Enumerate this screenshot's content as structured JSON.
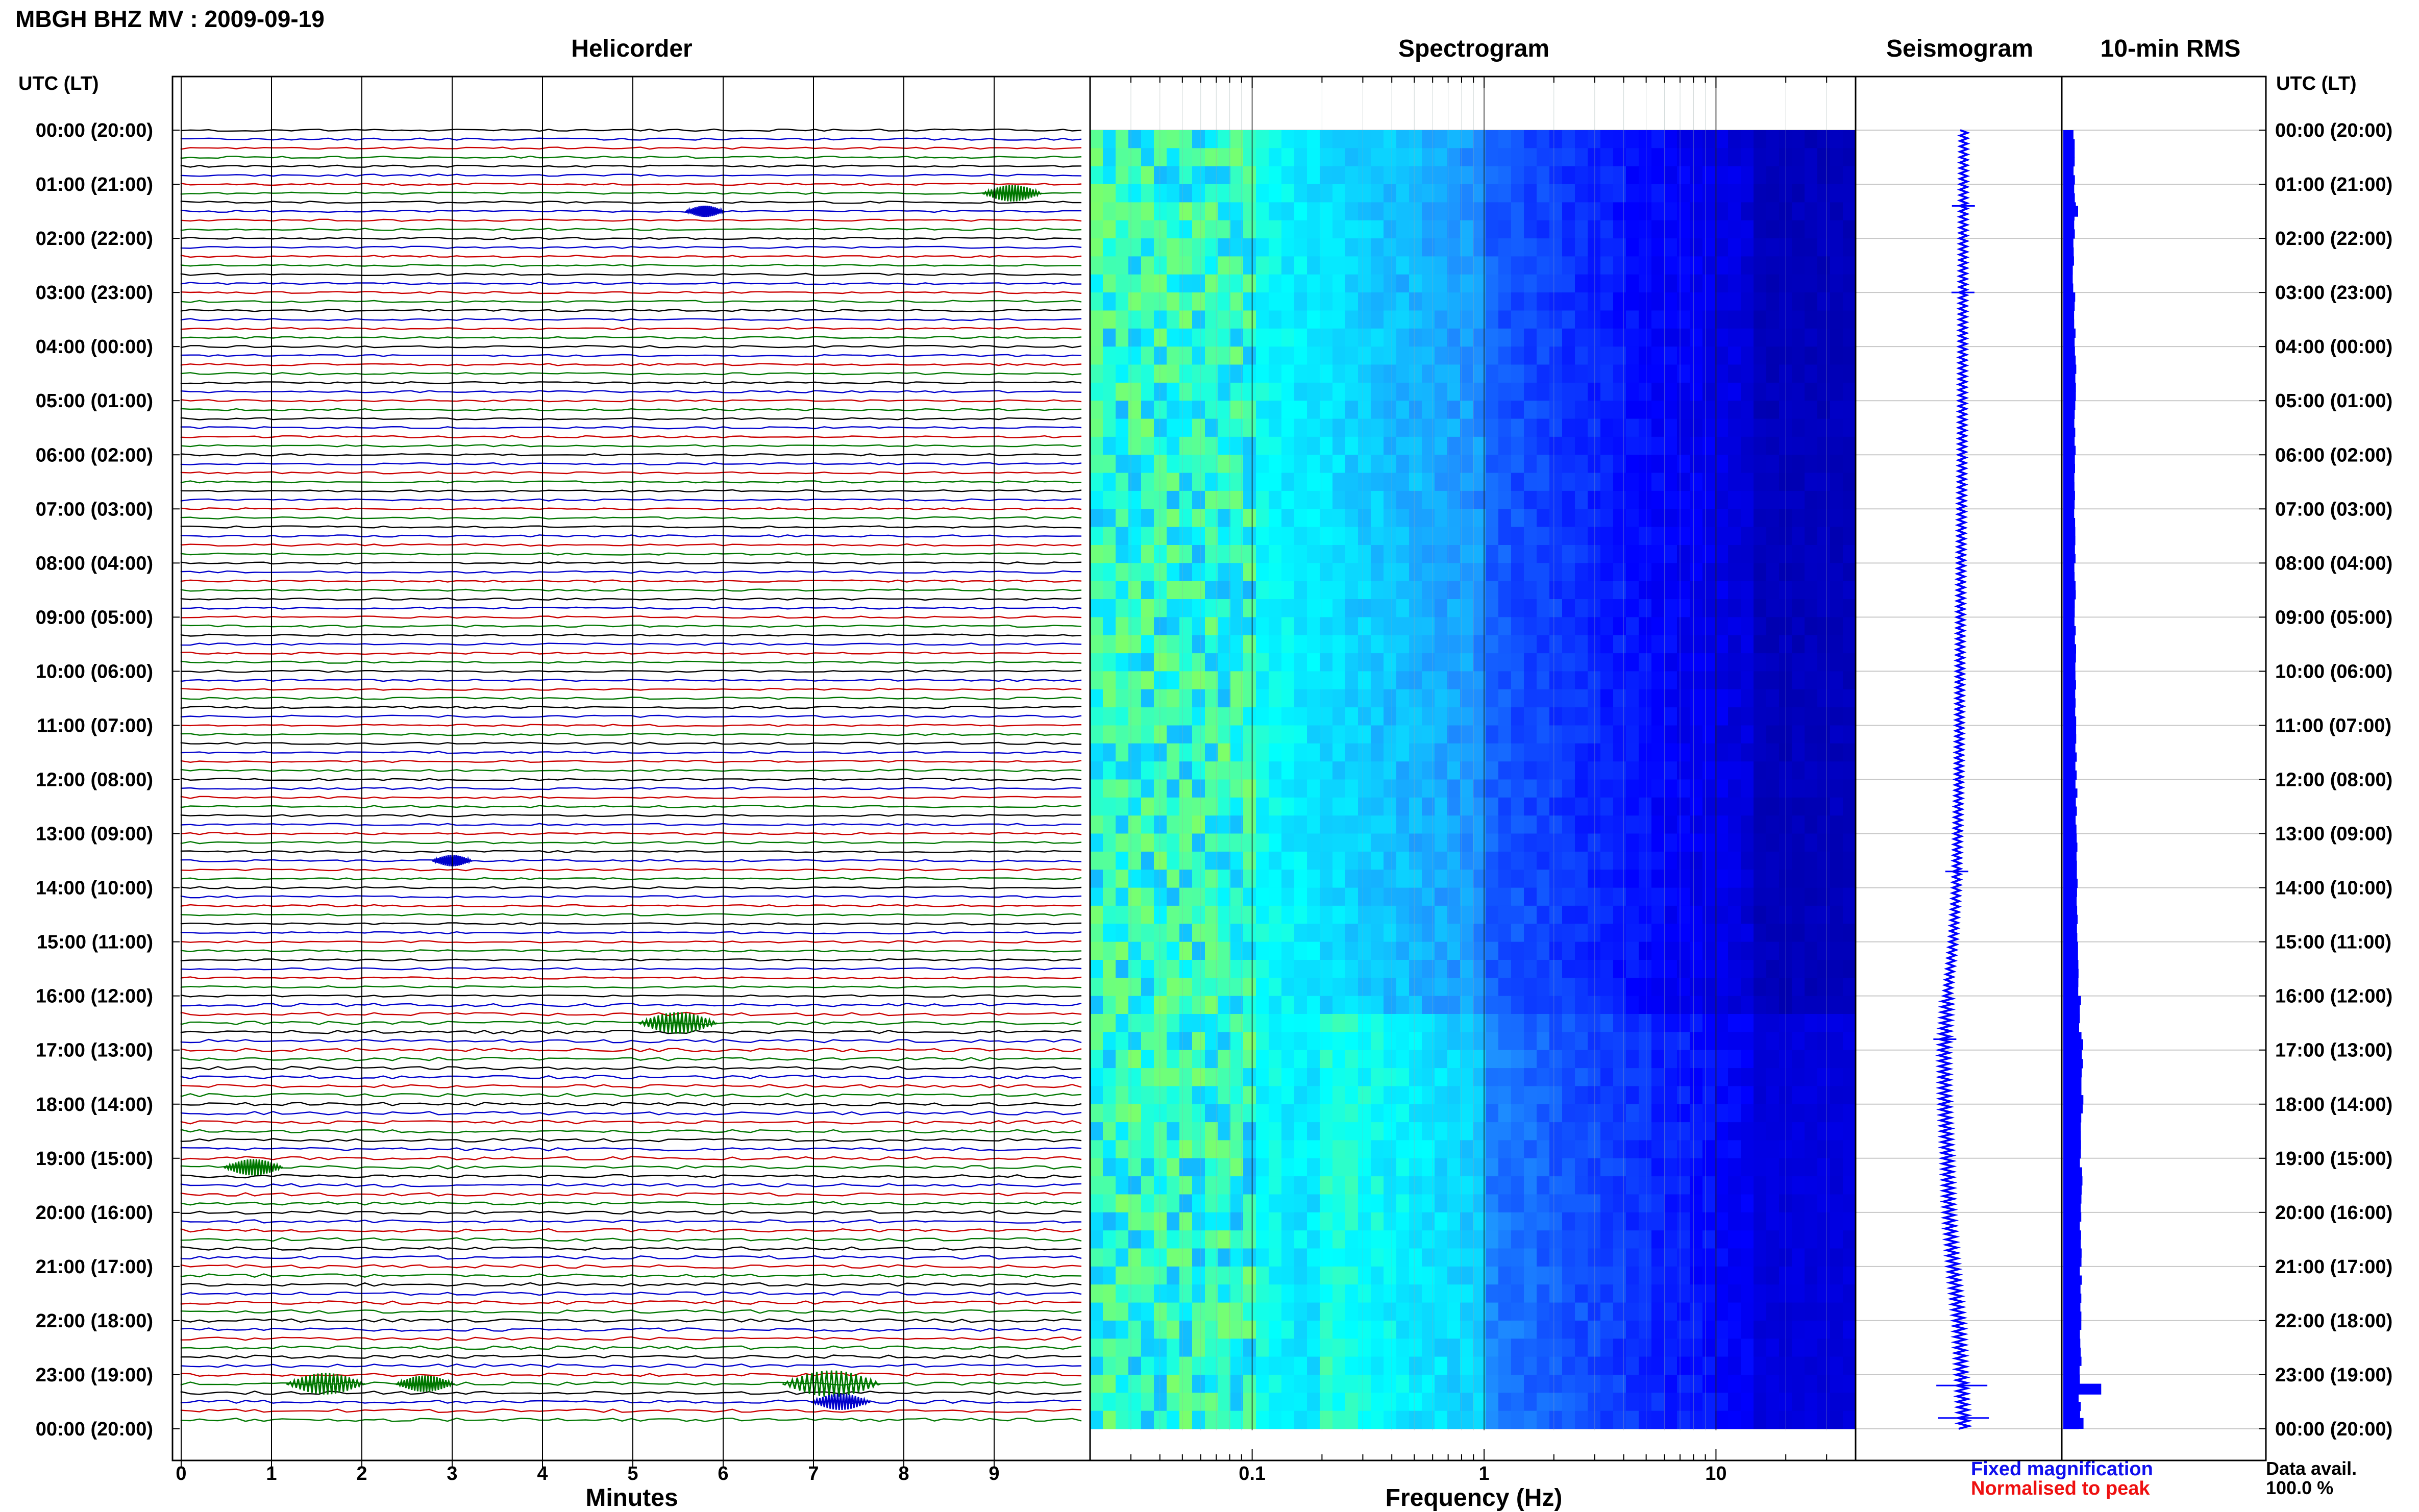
{
  "title": "MBGH BHZ MV : 2009-09-19",
  "panels": {
    "helicorder": "Helicorder",
    "spectrogram": "Spectrogram",
    "seismogram": "Seismogram",
    "rms": "10-min RMS"
  },
  "utc_label_left": "UTC (LT)",
  "utc_label_right": "UTC (LT)",
  "legend": {
    "fixed": "Fixed magnification",
    "normalised": "Normalised to peak",
    "fixed_color": "#1010ee",
    "normalised_color": "#ee1010"
  },
  "data_availability": {
    "label": "Data avail.",
    "value": "100.0 %"
  },
  "colors": {
    "trace_cycle": [
      "#000000",
      "#0000cc",
      "#cc0000",
      "#007700"
    ],
    "rms_bar": "#0000ff",
    "seismogram": "#0000ff"
  },
  "chart_data": [
    {
      "type": "line",
      "title": "Helicorder",
      "xlabel": "Minutes",
      "xlim": [
        0,
        10
      ],
      "xticks": [
        "0",
        "1",
        "2",
        "3",
        "4",
        "5",
        "6",
        "7",
        "8",
        "9"
      ],
      "ytick_labels": [
        "00:00 (20:00)",
        "01:00 (21:00)",
        "02:00 (22:00)",
        "03:00 (23:00)",
        "04:00 (00:00)",
        "05:00 (01:00)",
        "06:00 (02:00)",
        "07:00 (03:00)",
        "08:00 (04:00)",
        "09:00 (05:00)",
        "10:00 (06:00)",
        "11:00 (07:00)",
        "12:00 (08:00)",
        "13:00 (09:00)",
        "14:00 (10:00)",
        "15:00 (11:00)",
        "16:00 (12:00)",
        "17:00 (13:00)",
        "18:00 (14:00)",
        "19:00 (15:00)",
        "20:00 (16:00)",
        "21:00 (17:00)",
        "22:00 (18:00)",
        "23:00 (19:00)",
        "00:00 (20:00)"
      ],
      "lines_per_hour": 6,
      "events": [
        {
          "hour": 1.1667,
          "minute": 9.2,
          "size": 2
        },
        {
          "hour": 1.5,
          "minute": 5.8,
          "size": 1
        },
        {
          "hour": 13.5,
          "minute": 3.0,
          "size": 1
        },
        {
          "hour": 16.5,
          "minute": 5.5,
          "size": 3
        },
        {
          "hour": 19.1667,
          "minute": 0.8,
          "size": 2
        },
        {
          "hour": 23.1667,
          "minute": 1.6,
          "size": 3
        },
        {
          "hour": 23.1667,
          "minute": 2.7,
          "size": 2
        },
        {
          "hour": 23.1667,
          "minute": 7.2,
          "size": 4
        },
        {
          "hour": 23.5,
          "minute": 7.3,
          "size": 2
        }
      ],
      "grid": true
    },
    {
      "type": "heatmap",
      "title": "Spectrogram",
      "xlabel": "Frequency (Hz)",
      "xscale": "log",
      "xlim": [
        0.02,
        40
      ],
      "xticks": [
        "0.1",
        "1",
        "10"
      ],
      "xtick_values": [
        0.1,
        1,
        10
      ],
      "ylim": [
        0,
        24
      ],
      "colormap": [
        "#00008b",
        "#0000ff",
        "#1e90ff",
        "#00ffff",
        "#adff2f"
      ]
    },
    {
      "type": "line",
      "title": "Seismogram",
      "description_values": "trend",
      "points": [
        [
          0,
          0.0
        ],
        [
          3,
          -0.1
        ],
        [
          6,
          -0.2
        ],
        [
          9,
          -0.4
        ],
        [
          12,
          -0.6
        ],
        [
          14,
          -0.9
        ],
        [
          15,
          -1.3
        ],
        [
          16,
          -2.0
        ],
        [
          17,
          -2.4
        ],
        [
          18,
          -2.3
        ],
        [
          19,
          -2.0
        ],
        [
          20,
          -1.8
        ],
        [
          21,
          -1.3
        ],
        [
          22,
          -0.6
        ],
        [
          23,
          -0.3
        ],
        [
          24,
          0.0
        ]
      ],
      "spikes": [
        1.4,
        3.0,
        13.7,
        16.8,
        23.2,
        23.8
      ]
    },
    {
      "type": "bar",
      "title": "10-min RMS",
      "orientation": "horizontal",
      "hourly_level": [
        65,
        70,
        60,
        68,
        72,
        70,
        66,
        68,
        70,
        72,
        74,
        76,
        78,
        80,
        82,
        86,
        100,
        115,
        110,
        106,
        104,
        102,
        100,
        98
      ],
      "spikes": [
        {
          "hour": 1.4,
          "value": 88
        },
        {
          "hour": 16.8,
          "value": 118
        },
        {
          "hour": 23.1667,
          "value": 225
        },
        {
          "hour": 23.8,
          "value": 120
        }
      ],
      "units": "relative"
    }
  ]
}
